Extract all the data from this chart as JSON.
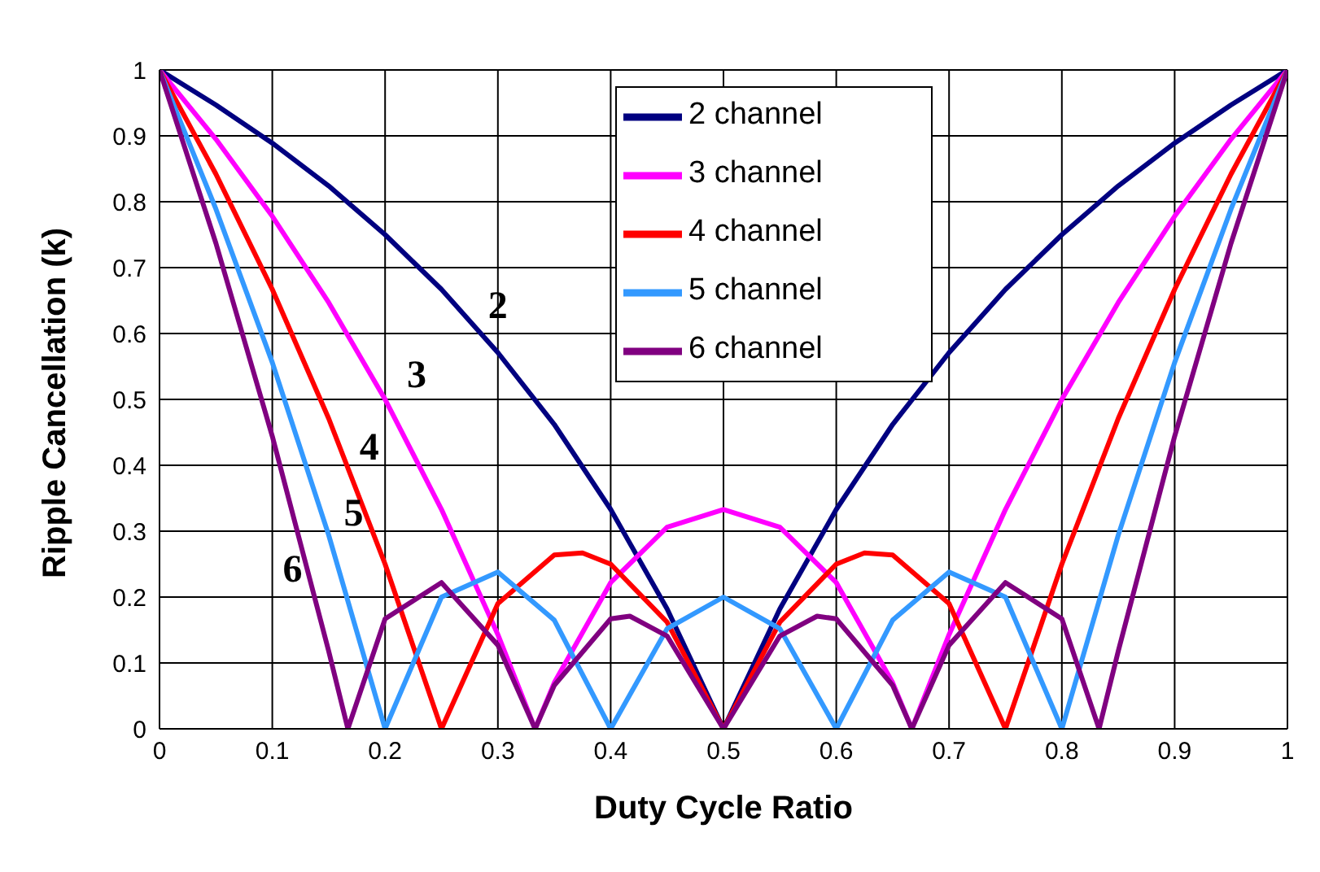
{
  "chart_data": {
    "type": "line",
    "xlabel": "Duty Cycle Ratio",
    "ylabel": "Ripple Cancellation (k)",
    "xlim": [
      0,
      1
    ],
    "xticks": [
      0,
      0.1,
      0.2,
      0.3,
      0.4,
      0.5,
      0.6,
      0.7,
      0.8,
      0.9,
      1
    ],
    "ylim": [
      0,
      1
    ],
    "yticks": [
      0,
      0.1,
      0.2,
      0.3,
      0.4,
      0.5,
      0.6,
      0.7,
      0.8,
      0.9,
      1
    ],
    "grid": true,
    "legend": "top",
    "marker": "none",
    "line_style": "solid",
    "series": [
      {
        "name": "2 channel",
        "color": "#000080",
        "x": [
          0,
          0.05,
          0.1,
          0.15,
          0.2,
          0.25,
          0.3,
          0.35,
          0.4,
          0.45,
          0.5,
          0.55,
          0.6,
          0.65,
          0.7,
          0.75,
          0.8,
          0.85,
          0.9,
          0.95,
          1
        ],
        "values": [
          1,
          0.947,
          0.889,
          0.824,
          0.75,
          0.667,
          0.571,
          0.462,
          0.333,
          0.182,
          0,
          0.182,
          0.333,
          0.462,
          0.571,
          0.667,
          0.75,
          0.824,
          0.889,
          0.947,
          1
        ]
      },
      {
        "name": "3 channel",
        "color": "#ff00ff",
        "x": [
          0,
          0.05,
          0.1,
          0.15,
          0.2,
          0.25,
          0.3,
          0.333,
          0.35,
          0.4,
          0.45,
          0.5,
          0.55,
          0.6,
          0.65,
          0.667,
          0.7,
          0.75,
          0.8,
          0.85,
          0.9,
          0.95,
          1
        ],
        "values": [
          1,
          0.895,
          0.778,
          0.647,
          0.5,
          0.333,
          0.143,
          0,
          0.07,
          0.222,
          0.306,
          0.333,
          0.306,
          0.222,
          0.07,
          0,
          0.143,
          0.333,
          0.5,
          0.647,
          0.778,
          0.895,
          1
        ]
      },
      {
        "name": "4 channel",
        "color": "#ff0000",
        "x": [
          0,
          0.05,
          0.1,
          0.15,
          0.2,
          0.25,
          0.3,
          0.35,
          0.375,
          0.4,
          0.45,
          0.5,
          0.55,
          0.6,
          0.625,
          0.65,
          0.7,
          0.75,
          0.8,
          0.85,
          0.9,
          0.95,
          1
        ],
        "values": [
          1,
          0.842,
          0.667,
          0.471,
          0.25,
          0,
          0.19,
          0.264,
          0.267,
          0.25,
          0.162,
          0,
          0.162,
          0.25,
          0.267,
          0.264,
          0.19,
          0,
          0.25,
          0.471,
          0.667,
          0.842,
          1
        ]
      },
      {
        "name": "5 channel",
        "color": "#3399ff",
        "x": [
          0,
          0.05,
          0.1,
          0.15,
          0.2,
          0.25,
          0.3,
          0.35,
          0.4,
          0.45,
          0.5,
          0.55,
          0.6,
          0.65,
          0.7,
          0.75,
          0.8,
          0.85,
          0.9,
          0.95,
          1
        ],
        "values": [
          1,
          0.789,
          0.556,
          0.294,
          0,
          0.2,
          0.238,
          0.165,
          0,
          0.152,
          0.2,
          0.152,
          0,
          0.165,
          0.238,
          0.2,
          0,
          0.294,
          0.556,
          0.789,
          1
        ]
      },
      {
        "name": "6 channel",
        "color": "#800080",
        "x": [
          0,
          0.05,
          0.1,
          0.15,
          0.167,
          0.2,
          0.25,
          0.3,
          0.333,
          0.35,
          0.4,
          0.417,
          0.45,
          0.5,
          0.55,
          0.583,
          0.6,
          0.65,
          0.667,
          0.7,
          0.75,
          0.8,
          0.833,
          0.85,
          0.9,
          0.95,
          1
        ],
        "values": [
          1,
          0.737,
          0.444,
          0.118,
          0,
          0.167,
          0.222,
          0.127,
          0,
          0.066,
          0.167,
          0.171,
          0.141,
          0,
          0.141,
          0.171,
          0.167,
          0.066,
          0,
          0.127,
          0.222,
          0.167,
          0,
          0.118,
          0.444,
          0.737,
          1
        ]
      }
    ],
    "annotations": [
      "2",
      "3",
      "4",
      "5",
      "6"
    ]
  }
}
